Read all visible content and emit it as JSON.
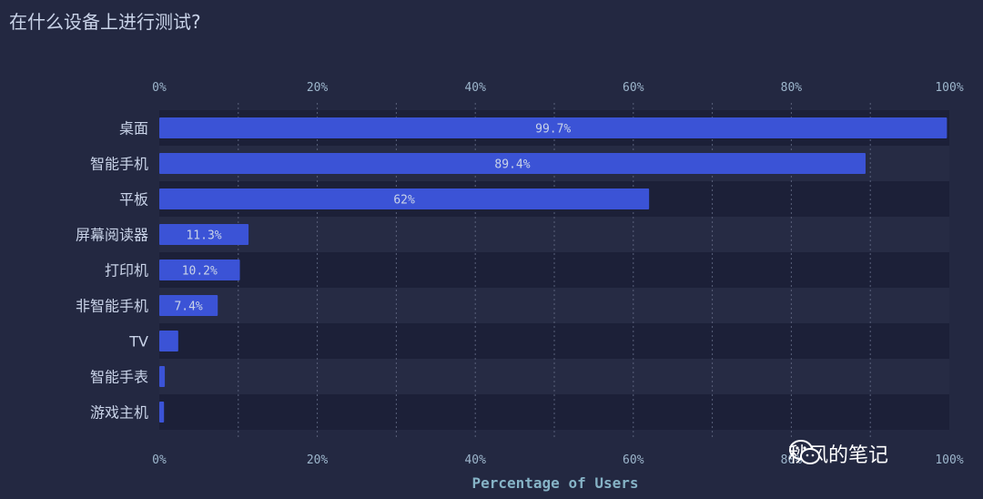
{
  "title": "在什么设备上进行测试?",
  "watermark": {
    "text": "秋风的笔记",
    "icon": "wechat-icon"
  },
  "colors": {
    "background": "#232841",
    "band_dark": "#1c2038",
    "band_light": "#262b44",
    "bar": "#3b53d6",
    "tick_text": "#9db6cc",
    "label_text": "#c9d3e8",
    "axis_title": "#86b3c6"
  },
  "chart_data": {
    "type": "bar",
    "orientation": "horizontal",
    "categories": [
      "桌面",
      "智能手机",
      "平板",
      "屏幕阅读器",
      "打印机",
      "非智能手机",
      "TV",
      "智能手表",
      "游戏主机"
    ],
    "values": [
      99.7,
      89.4,
      62,
      11.3,
      10.2,
      7.4,
      2.4,
      0.7,
      0.6
    ],
    "data_labels": [
      "99.7%",
      "89.4%",
      "62%",
      "11.3%",
      "10.2%",
      "7.4%",
      "",
      "",
      ""
    ],
    "xlabel": "Percentage of Users",
    "xlim": [
      0,
      100
    ],
    "xticks": [
      "0%",
      "20%",
      "40%",
      "60%",
      "80%",
      "100%"
    ],
    "grid": true,
    "ticks_top_and_bottom": true
  }
}
